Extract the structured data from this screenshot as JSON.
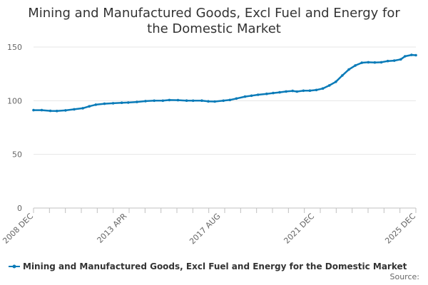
{
  "chart_data": {
    "type": "line",
    "title": "Mining and Manufactured Goods, Excl Fuel and Energy for the Domestic Market",
    "title_lines": [
      "Mining and Manufactured Goods, Excl Fuel and Energy for",
      "the Domestic Market"
    ],
    "xlabel": "",
    "ylabel": "",
    "ylim": [
      0,
      150
    ],
    "yticks": [
      "0",
      "50",
      "100",
      "150"
    ],
    "grid": true,
    "x_range": [
      "2008 DEC",
      "2025 DEC"
    ],
    "x_ticks": [
      "2008 DEC",
      "2013 APR",
      "2017 AUG",
      "2021 DEC",
      "2025 DEC"
    ],
    "series": [
      {
        "name": "Mining and Manufactured Goods, Excl Fuel and Energy for the Domestic Market",
        "color": "#0a7bb8",
        "points": [
          [
            2008.92,
            91.2
          ],
          [
            2009.3,
            91.2
          ],
          [
            2009.7,
            90.5
          ],
          [
            2010.0,
            90.4
          ],
          [
            2010.4,
            91.0
          ],
          [
            2010.8,
            92.0
          ],
          [
            2011.2,
            93.0
          ],
          [
            2011.5,
            94.8
          ],
          [
            2011.8,
            96.3
          ],
          [
            2012.2,
            97.2
          ],
          [
            2012.6,
            97.6
          ],
          [
            2013.0,
            98.1
          ],
          [
            2013.3,
            98.3
          ],
          [
            2013.7,
            98.8
          ],
          [
            2014.1,
            99.6
          ],
          [
            2014.5,
            100.0
          ],
          [
            2014.9,
            100.0
          ],
          [
            2015.2,
            100.6
          ],
          [
            2015.6,
            100.5
          ],
          [
            2016.0,
            100.1
          ],
          [
            2016.3,
            100.0
          ],
          [
            2016.7,
            100.1
          ],
          [
            2017.0,
            99.4
          ],
          [
            2017.3,
            99.2
          ],
          [
            2017.7,
            100.0
          ],
          [
            2018.0,
            100.7
          ],
          [
            2018.3,
            102.0
          ],
          [
            2018.7,
            103.8
          ],
          [
            2019.0,
            104.7
          ],
          [
            2019.3,
            105.5
          ],
          [
            2019.7,
            106.4
          ],
          [
            2020.0,
            107.1
          ],
          [
            2020.3,
            107.8
          ],
          [
            2020.6,
            108.6
          ],
          [
            2020.9,
            109.1
          ],
          [
            2021.1,
            108.5
          ],
          [
            2021.4,
            109.3
          ],
          [
            2021.7,
            109.4
          ],
          [
            2022.0,
            110.0
          ],
          [
            2022.3,
            111.4
          ],
          [
            2022.6,
            114.2
          ],
          [
            2022.9,
            117.6
          ],
          [
            2023.2,
            123.5
          ],
          [
            2023.5,
            129.0
          ],
          [
            2023.8,
            132.8
          ],
          [
            2024.1,
            135.3
          ],
          [
            2024.4,
            135.8
          ],
          [
            2024.7,
            135.6
          ],
          [
            2025.0,
            135.8
          ],
          [
            2025.3,
            136.9
          ],
          [
            2025.6,
            137.3
          ],
          [
            2025.9,
            138.5
          ],
          [
            2026.1,
            141.4
          ],
          [
            2026.4,
            142.6
          ],
          [
            2026.6,
            142.4
          ]
        ]
      }
    ],
    "legend": {
      "label": "Mining and Manufactured Goods, Excl Fuel and Energy for the Domestic Market",
      "placement": "bottom"
    },
    "source_label": "Source:"
  }
}
